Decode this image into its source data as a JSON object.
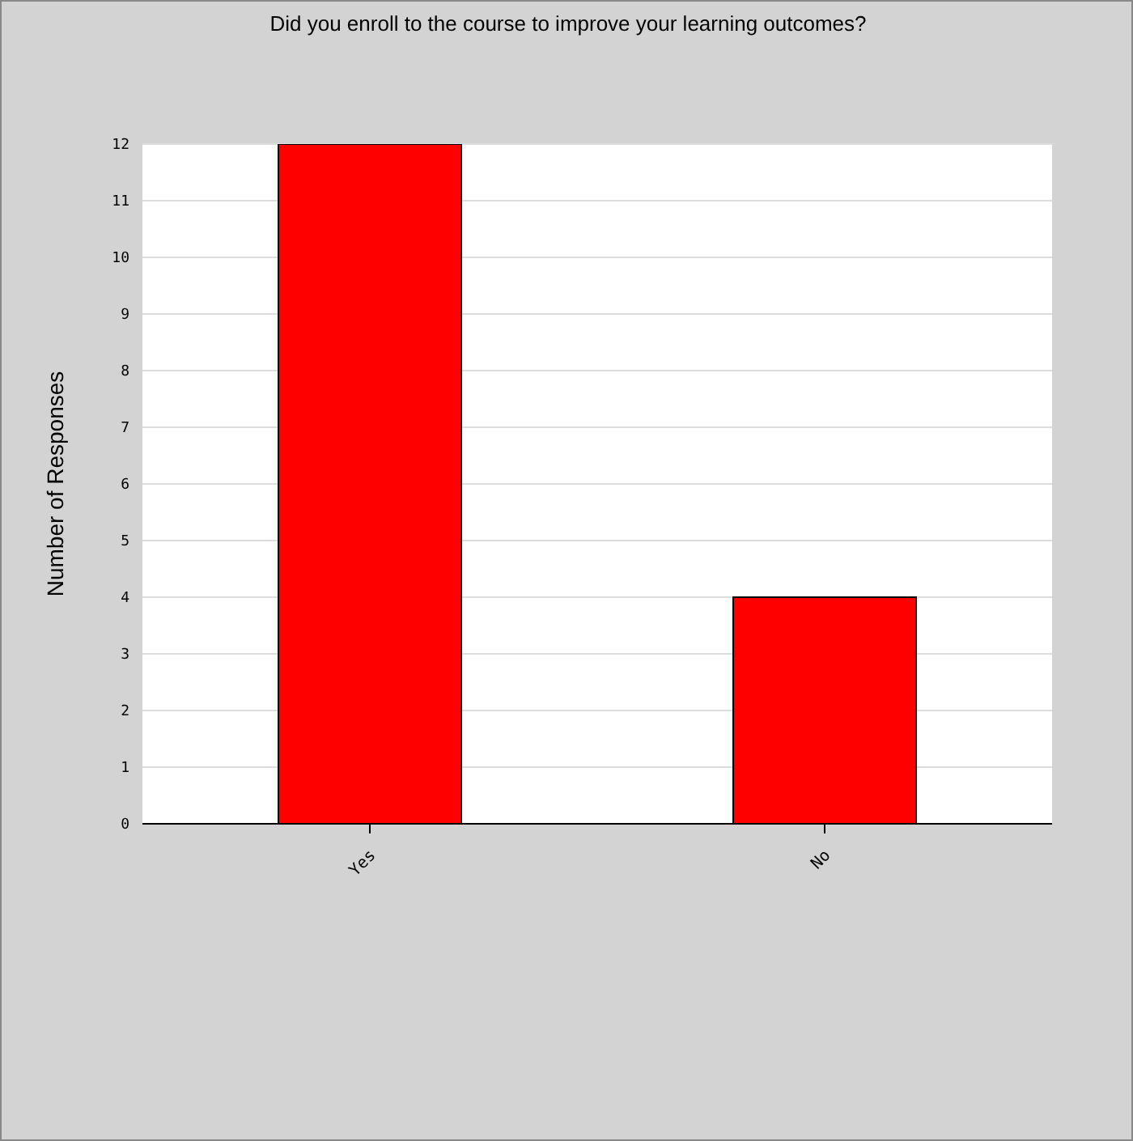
{
  "chart_data": {
    "type": "bar",
    "title": "Did you enroll to the course to improve your learning outcomes?",
    "ylabel": "Number of Responses",
    "categories": [
      "Yes",
      "No"
    ],
    "values": [
      12,
      4
    ],
    "color": "#ff0000",
    "ylim": [
      0,
      12
    ],
    "yticks": [
      0,
      1,
      2,
      3,
      4,
      5,
      6,
      7,
      8,
      9,
      10,
      11,
      12
    ],
    "grid": "y"
  }
}
